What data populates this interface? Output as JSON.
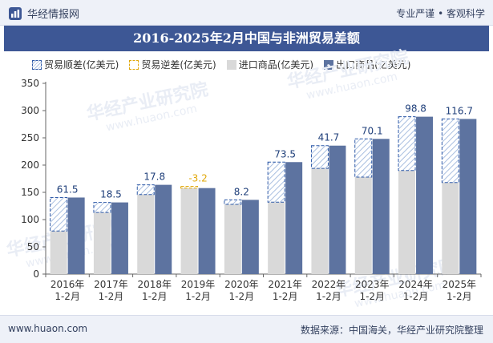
{
  "header": {
    "brand_name": "华经情报网",
    "tagline": "专业严谨 • 客观科学"
  },
  "footer": {
    "website": "www.huaon.com",
    "source": "数据来源：中国海关，华经产业研究院整理"
  },
  "watermark": {
    "text_cn": "华经产业研究院",
    "text_url": "www.huaon.com"
  },
  "colors": {
    "title_bar": "#3d5795",
    "export": "#5d73a0",
    "import": "#d9d9d9",
    "surplus_border": "#2f5aa8",
    "surplus_hatch": "#a9bfe0",
    "deficit": "#e1a80a",
    "surplus_label": "#1f3f7a"
  },
  "chart_data": {
    "type": "bar",
    "title": "2016-2025年2月中国与非洲贸易差额",
    "categories": [
      "2016年\n1-2月",
      "2017年\n1-2月",
      "2018年\n1-2月",
      "2019年\n1-2月",
      "2020年\n1-2月",
      "2021年\n1-2月",
      "2022年\n1-2月",
      "2023年\n1-2月",
      "2024年\n1-2月",
      "2025年\n1-2月"
    ],
    "series": [
      {
        "name": "进口商品(亿美元)",
        "values": [
          79,
          113,
          146,
          161,
          128,
          132,
          194,
          178,
          190,
          168
        ]
      },
      {
        "name": "出口商品(亿美元)",
        "values": [
          140.5,
          131.5,
          163.8,
          157.8,
          136.2,
          205.5,
          235.7,
          248.1,
          288.8,
          284.7
        ]
      },
      {
        "name": "贸易顺差(亿美元)",
        "values": [
          61.5,
          18.5,
          17.8,
          null,
          8.2,
          73.5,
          41.7,
          70.1,
          98.8,
          116.7
        ]
      },
      {
        "name": "贸易逆差(亿美元)",
        "values": [
          null,
          null,
          null,
          -3.2,
          null,
          null,
          null,
          null,
          null,
          null
        ]
      }
    ],
    "balance_labels": [
      "61.5",
      "18.5",
      "17.8",
      "-3.2",
      "8.2",
      "73.5",
      "41.7",
      "70.1",
      "98.8",
      "116.7"
    ],
    "legend": [
      "贸易顺差(亿美元)",
      "贸易逆差(亿美元)",
      "进口商品(亿美元)",
      "出口商品(亿美元)"
    ],
    "legend_position": "top-left",
    "ylim": [
      0,
      350
    ],
    "yticks": [
      0,
      50,
      100,
      150,
      200,
      250,
      300,
      350
    ],
    "grid": false,
    "xlabel": "",
    "ylabel": ""
  }
}
